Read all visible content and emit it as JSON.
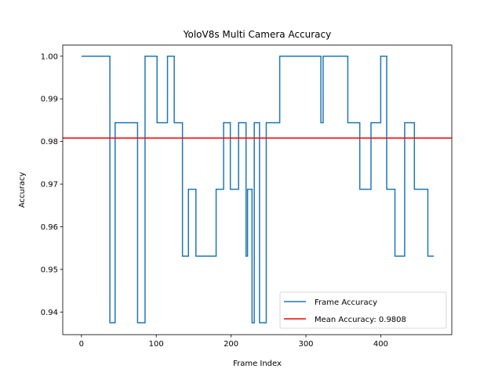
{
  "chart_data": {
    "type": "line",
    "title": "YoloV8s Multi Camera Accuracy",
    "xlabel": "Frame Index",
    "ylabel": "Accuracy",
    "xlim": [
      -25,
      495
    ],
    "ylim": [
      0.9347,
      1.0026
    ],
    "xticks": [
      0,
      100,
      200,
      300,
      400
    ],
    "yticks": [
      0.94,
      0.95,
      0.96,
      0.97,
      0.98,
      0.99,
      1.0
    ],
    "ytick_labels": [
      "0.94",
      "0.95",
      "0.96",
      "0.97",
      "0.98",
      "0.99",
      "1.00"
    ],
    "grid": false,
    "legend_position": "lower right",
    "series": [
      {
        "name": "Frame Accuracy",
        "color": "#1f77b4",
        "style": "step",
        "points": [
          [
            0,
            1.0
          ],
          [
            38,
            1.0
          ],
          [
            38,
            0.9375
          ],
          [
            45,
            0.9375
          ],
          [
            45,
            0.9844
          ],
          [
            75,
            0.9844
          ],
          [
            75,
            0.9375
          ],
          [
            85,
            0.9375
          ],
          [
            85,
            1.0
          ],
          [
            101,
            1.0
          ],
          [
            101,
            0.9844
          ],
          [
            115,
            0.9844
          ],
          [
            115,
            1.0
          ],
          [
            124,
            1.0
          ],
          [
            124,
            0.9844
          ],
          [
            135,
            0.9844
          ],
          [
            135,
            0.9531
          ],
          [
            143,
            0.9531
          ],
          [
            143,
            0.9688
          ],
          [
            153,
            0.9688
          ],
          [
            153,
            0.9531
          ],
          [
            180,
            0.9531
          ],
          [
            180,
            0.9688
          ],
          [
            190,
            0.9688
          ],
          [
            190,
            0.9844
          ],
          [
            199,
            0.9844
          ],
          [
            199,
            0.9688
          ],
          [
            210,
            0.9688
          ],
          [
            210,
            0.9844
          ],
          [
            220,
            0.9844
          ],
          [
            220,
            0.9531
          ],
          [
            222,
            0.9531
          ],
          [
            222,
            0.9688
          ],
          [
            228,
            0.9688
          ],
          [
            228,
            0.9375
          ],
          [
            231,
            0.9375
          ],
          [
            231,
            0.9844
          ],
          [
            238,
            0.9844
          ],
          [
            238,
            0.9375
          ],
          [
            247,
            0.9375
          ],
          [
            247,
            0.9844
          ],
          [
            265,
            0.9844
          ],
          [
            265,
            1.0
          ],
          [
            320,
            1.0
          ],
          [
            320,
            0.9844
          ],
          [
            323,
            0.9844
          ],
          [
            323,
            1.0
          ],
          [
            356,
            1.0
          ],
          [
            356,
            0.9844
          ],
          [
            372,
            0.9844
          ],
          [
            372,
            0.9688
          ],
          [
            387,
            0.9688
          ],
          [
            387,
            0.9844
          ],
          [
            400,
            0.9844
          ],
          [
            400,
            1.0
          ],
          [
            408,
            1.0
          ],
          [
            408,
            0.9688
          ],
          [
            419,
            0.9688
          ],
          [
            419,
            0.9531
          ],
          [
            432,
            0.9531
          ],
          [
            432,
            0.9844
          ],
          [
            445,
            0.9844
          ],
          [
            445,
            0.9688
          ],
          [
            463,
            0.9688
          ],
          [
            463,
            0.9531
          ],
          [
            471,
            0.9531
          ]
        ]
      },
      {
        "name": "Mean Accuracy: 0.9808",
        "color": "#ff0000",
        "style": "hline",
        "value": 0.9808
      }
    ]
  }
}
